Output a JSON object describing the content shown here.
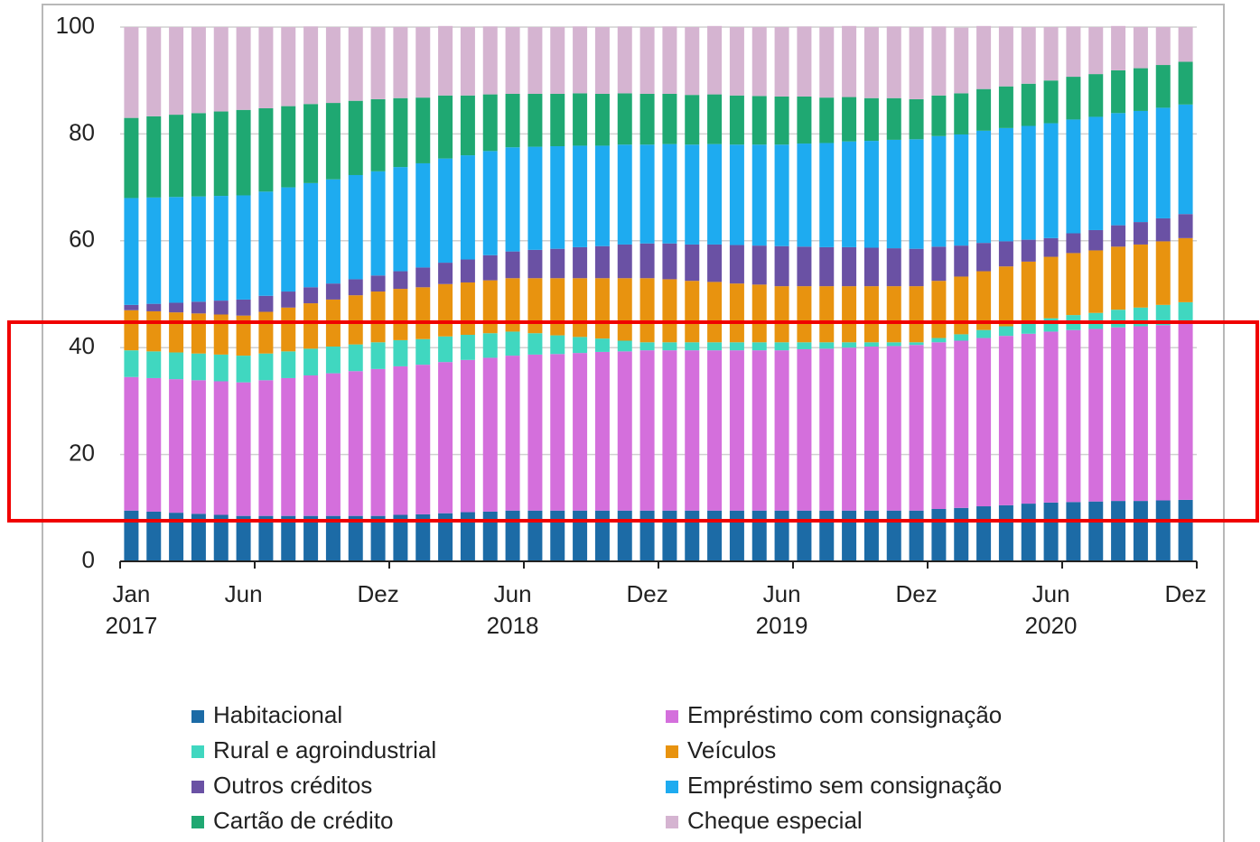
{
  "chart_data": {
    "type": "stacked_bar",
    "categories": [
      "Jan 2017",
      null,
      null,
      null,
      null,
      "Jun",
      null,
      null,
      null,
      null,
      null,
      "Dez",
      null,
      null,
      null,
      null,
      null,
      "Jun 2018",
      null,
      null,
      null,
      null,
      null,
      "Dez",
      null,
      null,
      null,
      null,
      null,
      "Jun 2019",
      null,
      null,
      null,
      null,
      null,
      "Dez",
      null,
      null,
      null,
      null,
      null,
      "Jun 2020",
      null,
      null,
      null,
      null,
      null,
      "Dez"
    ],
    "ylim": [
      0,
      100
    ],
    "yticks": [
      0,
      20,
      40,
      60,
      80,
      100
    ],
    "grid": true,
    "series": [
      {
        "name": "Habitacional",
        "color": "#1c6ba6",
        "values": [
          9.5,
          9.3,
          9.1,
          8.9,
          8.7,
          8.5,
          8.5,
          8.5,
          8.5,
          8.5,
          8.5,
          8.5,
          8.7,
          8.8,
          9.0,
          9.2,
          9.3,
          9.5,
          9.5,
          9.5,
          9.5,
          9.5,
          9.5,
          9.5,
          9.5,
          9.5,
          9.5,
          9.5,
          9.5,
          9.5,
          9.5,
          9.5,
          9.5,
          9.5,
          9.5,
          9.5,
          9.8,
          10,
          10.3,
          10.5,
          10.8,
          11,
          11.1,
          11.2,
          11.3,
          11.3,
          11.4,
          11.5
        ]
      },
      {
        "name": "Empréstimo com consignação",
        "color": "#d46fdc",
        "values": [
          25,
          25,
          25,
          25,
          25,
          25,
          25.4,
          25.8,
          26.3,
          26.7,
          27.1,
          27.5,
          27.8,
          28,
          28.3,
          28.5,
          28.8,
          29,
          29.2,
          29.3,
          29.5,
          29.7,
          29.8,
          30,
          30,
          30,
          30,
          30,
          30,
          30,
          30.2,
          30.3,
          30.5,
          30.7,
          30.8,
          31,
          31.2,
          31.3,
          31.5,
          31.7,
          31.8,
          32,
          32.2,
          32.3,
          32.5,
          32.7,
          32.8,
          33
        ]
      },
      {
        "name": "Rural e agroindustrial",
        "color": "#40d7c0",
        "values": [
          5,
          5,
          5,
          5,
          5,
          5,
          5,
          5,
          5,
          5,
          5,
          5,
          4.9,
          4.8,
          4.8,
          4.7,
          4.6,
          4.5,
          4,
          3.5,
          3,
          2.5,
          2,
          1.5,
          1.5,
          1.5,
          1.5,
          1.5,
          1.5,
          1.5,
          1.3,
          1.2,
          1,
          0.8,
          0.7,
          0.5,
          0.8,
          1.2,
          1.5,
          1.8,
          2.2,
          2.5,
          2.8,
          3,
          3.3,
          3.5,
          3.8,
          4
        ]
      },
      {
        "name": "Veículos",
        "color": "#e8930f",
        "values": [
          7.5,
          7.5,
          7.5,
          7.5,
          7.5,
          7.5,
          7.8,
          8.2,
          8.5,
          8.8,
          9.2,
          9.5,
          9.6,
          9.7,
          9.8,
          9.8,
          9.9,
          10,
          10.3,
          10.7,
          11,
          11.3,
          11.7,
          12,
          11.8,
          11.5,
          11.3,
          11,
          10.8,
          10.5,
          10.5,
          10.5,
          10.5,
          10.5,
          10.5,
          10.5,
          10.7,
          10.8,
          11,
          11.2,
          11.3,
          11.5,
          11.6,
          11.7,
          11.8,
          11.8,
          11.9,
          12
        ]
      },
      {
        "name": "Outros créditos",
        "color": "#6a51a4",
        "values": [
          1,
          1.4,
          1.8,
          2.2,
          2.6,
          3,
          3,
          3,
          3,
          3,
          3,
          3,
          3.3,
          3.7,
          4,
          4.3,
          4.7,
          5,
          5.3,
          5.5,
          5.8,
          6,
          6.3,
          6.5,
          6.7,
          6.8,
          7,
          7.2,
          7.3,
          7.5,
          7.4,
          7.3,
          7.3,
          7.2,
          7.1,
          7,
          6.4,
          5.8,
          5.3,
          4.7,
          4.1,
          3.5,
          3.7,
          3.8,
          4,
          4.2,
          4.3,
          4.5
        ]
      },
      {
        "name": "Empréstimo sem consignação",
        "color": "#1eabf0",
        "values": [
          20,
          19.9,
          19.8,
          19.7,
          19.6,
          19.5,
          19.5,
          19.5,
          19.5,
          19.5,
          19.5,
          19.5,
          19.5,
          19.5,
          19.5,
          19.5,
          19.5,
          19.5,
          19.3,
          19.2,
          19,
          18.8,
          18.7,
          18.5,
          18.6,
          18.7,
          18.8,
          18.8,
          18.9,
          19,
          19.3,
          19.5,
          19.8,
          20,
          20.3,
          20.5,
          20.7,
          20.8,
          21,
          21.2,
          21.3,
          21.5,
          21.3,
          21.2,
          21,
          20.8,
          20.7,
          20.5
        ]
      },
      {
        "name": "Cartão de crédito",
        "color": "#1fa872",
        "values": [
          15,
          15.2,
          15.4,
          15.6,
          15.8,
          16,
          15.6,
          15.2,
          14.8,
          14.3,
          13.9,
          13.5,
          12.9,
          12.3,
          11.8,
          11.2,
          10.6,
          10,
          9.9,
          9.8,
          9.8,
          9.7,
          9.6,
          9.5,
          9.4,
          9.3,
          9.3,
          9.2,
          9.1,
          9,
          8.8,
          8.5,
          8.3,
          8,
          7.8,
          7.5,
          7.6,
          7.7,
          7.8,
          7.8,
          7.9,
          8,
          8,
          8,
          8,
          8,
          8,
          8
        ]
      },
      {
        "name": "Cheque especial",
        "color": "#d5b4d1",
        "values": [
          17,
          16.7,
          16.4,
          16.1,
          15.8,
          15.5,
          15.2,
          14.8,
          14.5,
          14.2,
          13.8,
          13.5,
          13.3,
          13.2,
          13,
          12.8,
          12.7,
          12.5,
          12.5,
          12.5,
          12.5,
          12.5,
          12.5,
          12.5,
          12.6,
          12.7,
          12.8,
          12.8,
          12.9,
          13,
          13.1,
          13.2,
          13.3,
          13.3,
          13.4,
          13.5,
          12.9,
          12.3,
          11.8,
          11.2,
          10.6,
          10,
          9.4,
          8.8,
          8.3,
          7.7,
          7.1,
          6.5
        ]
      }
    ]
  }
}
